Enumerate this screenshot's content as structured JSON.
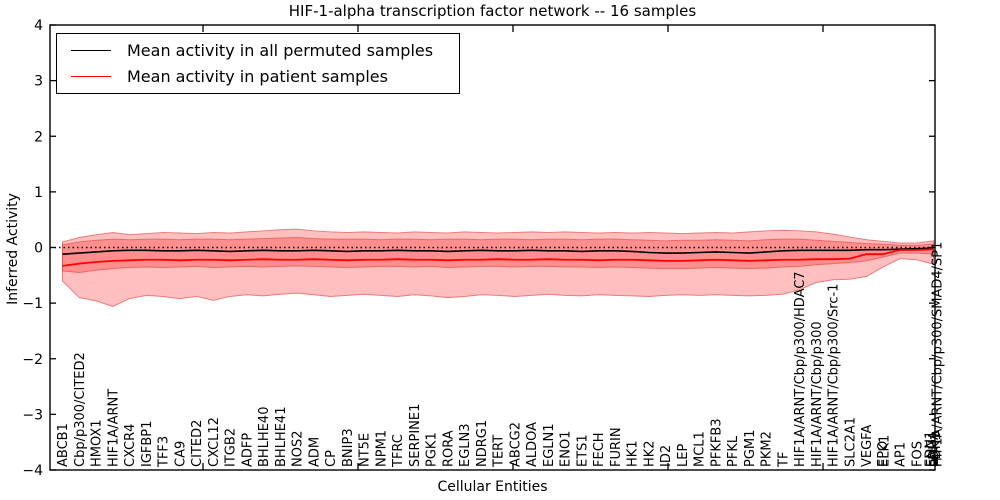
{
  "chart_data": {
    "type": "line",
    "title": "HIF-1-alpha transcription factor network -- 16 samples",
    "xlabel": "Cellular Entities",
    "ylabel": "Inferred Activity",
    "ylim": [
      -4,
      4
    ],
    "yticks": [
      -4,
      -3,
      -2,
      -1,
      0,
      1,
      2,
      3,
      4
    ],
    "grid": false,
    "zero_line_style": "dotted",
    "legend_position": "upper left",
    "x_labels": [
      [
        "ABCB1"
      ],
      [
        "Cbp/p300/CITED2"
      ],
      [
        "HMOX1"
      ],
      [
        "HIF1A/ARNT"
      ],
      [
        "CXCR4"
      ],
      [
        "IGFBP1"
      ],
      [
        "TFF3"
      ],
      [
        "CA9"
      ],
      [
        "CITED2"
      ],
      [
        "CXCL12"
      ],
      [
        "ITGB2"
      ],
      [
        "ADFP"
      ],
      [
        "BHLHE40"
      ],
      [
        "BHLHE41"
      ],
      [
        "NOS2"
      ],
      [
        "ADM"
      ],
      [
        "CP"
      ],
      [
        "BNIP3"
      ],
      [
        "NT5E"
      ],
      [
        "NPM1"
      ],
      [
        "TFRC"
      ],
      [
        "SERPINE1"
      ],
      [
        "PGK1"
      ],
      [
        "RORA"
      ],
      [
        "EGLN3"
      ],
      [
        "NDRG1"
      ],
      [
        "TERT"
      ],
      [
        "ABCG2"
      ],
      [
        "ALDOA"
      ],
      [
        "EGLN1"
      ],
      [
        "ENO1"
      ],
      [
        "ETS1"
      ],
      [
        "FECH"
      ],
      [
        "FURIN"
      ],
      [
        "HK1"
      ],
      [
        "HK2"
      ],
      [
        "ID2"
      ],
      [
        "LEP"
      ],
      [
        "MCL1"
      ],
      [
        "PFKFB3"
      ],
      [
        "PFKL"
      ],
      [
        "PGM1"
      ],
      [
        "PKM2"
      ],
      [
        "TF"
      ],
      [
        "HIF1A/ARNT/Cbp/p300/HDAC7"
      ],
      [
        "HIF1A/ARNT/Cbp/p300"
      ],
      [
        "HIF1A/ARNT/Cbp/p300/Src-1"
      ],
      [
        "SLC2A1"
      ],
      [
        "VEGFA"
      ],
      [
        "EPO",
        "ELK1"
      ],
      [
        "AP1"
      ],
      [
        "FOS"
      ],
      [
        "EDN1",
        "ENG",
        "LDHA",
        "PDK1",
        "HIF1A/ARNT/Cbp/p300/SMAD4/SP1"
      ]
    ],
    "series": [
      {
        "name": "Mean activity in all permuted samples",
        "color": "#000000",
        "values": [
          -0.12,
          -0.1,
          -0.08,
          -0.06,
          -0.05,
          -0.05,
          -0.06,
          -0.06,
          -0.05,
          -0.06,
          -0.07,
          -0.06,
          -0.05,
          -0.06,
          -0.06,
          -0.05,
          -0.06,
          -0.07,
          -0.06,
          -0.06,
          -0.05,
          -0.06,
          -0.06,
          -0.07,
          -0.06,
          -0.05,
          -0.06,
          -0.06,
          -0.05,
          -0.06,
          -0.06,
          -0.07,
          -0.06,
          -0.06,
          -0.07,
          -0.09,
          -0.1,
          -0.1,
          -0.09,
          -0.08,
          -0.09,
          -0.1,
          -0.08,
          -0.06,
          -0.05,
          -0.05,
          -0.05,
          -0.05,
          -0.04,
          -0.04,
          -0.03,
          -0.02,
          -0.01
        ]
      },
      {
        "name": "Mean activity in patient samples",
        "color": "#ff0000",
        "values": [
          -0.33,
          -0.29,
          -0.26,
          -0.24,
          -0.23,
          -0.22,
          -0.22,
          -0.23,
          -0.22,
          -0.22,
          -0.23,
          -0.22,
          -0.21,
          -0.22,
          -0.22,
          -0.21,
          -0.22,
          -0.23,
          -0.22,
          -0.22,
          -0.21,
          -0.22,
          -0.22,
          -0.23,
          -0.22,
          -0.22,
          -0.21,
          -0.22,
          -0.22,
          -0.21,
          -0.22,
          -0.22,
          -0.23,
          -0.22,
          -0.22,
          -0.23,
          -0.24,
          -0.24,
          -0.23,
          -0.22,
          -0.23,
          -0.24,
          -0.23,
          -0.22,
          -0.22,
          -0.21,
          -0.21,
          -0.2,
          -0.12,
          -0.12,
          -0.045,
          -0.045,
          -0.03
        ]
      }
    ],
    "bands": [
      {
        "name": "patient samples std band",
        "fill": "rgba(255,0,0,0.25)",
        "edge": "rgba(225,70,70,0.65)",
        "upper": [
          0.1,
          0.18,
          0.23,
          0.27,
          0.23,
          0.25,
          0.27,
          0.26,
          0.25,
          0.27,
          0.26,
          0.28,
          0.3,
          0.32,
          0.33,
          0.3,
          0.28,
          0.27,
          0.28,
          0.27,
          0.26,
          0.28,
          0.27,
          0.26,
          0.28,
          0.27,
          0.26,
          0.27,
          0.28,
          0.27,
          0.28,
          0.27,
          0.26,
          0.27,
          0.26,
          0.27,
          0.26,
          0.25,
          0.26,
          0.27,
          0.26,
          0.28,
          0.3,
          0.31,
          0.3,
          0.28,
          0.24,
          0.19,
          0.14,
          0.11,
          0.08,
          0.08,
          0.12
        ],
        "lower": [
          -0.6,
          -0.9,
          -0.96,
          -1.06,
          -0.92,
          -0.86,
          -0.88,
          -0.92,
          -0.88,
          -0.95,
          -0.88,
          -0.85,
          -0.87,
          -0.84,
          -0.82,
          -0.85,
          -0.88,
          -0.86,
          -0.84,
          -0.86,
          -0.88,
          -0.85,
          -0.87,
          -0.9,
          -0.88,
          -0.85,
          -0.86,
          -0.88,
          -0.86,
          -0.84,
          -0.86,
          -0.87,
          -0.85,
          -0.86,
          -0.87,
          -0.88,
          -0.86,
          -0.85,
          -0.86,
          -0.85,
          -0.86,
          -0.87,
          -0.86,
          -0.84,
          -0.76,
          -0.63,
          -0.58,
          -0.57,
          -0.52,
          -0.35,
          -0.2,
          -0.22,
          -0.3
        ]
      },
      {
        "name": "permuted samples std band",
        "fill": "rgba(255,0,0,0.25)",
        "edge": "rgba(225,70,70,0.65)",
        "upper": [
          0.05,
          0.1,
          0.13,
          0.15,
          0.14,
          0.15,
          0.15,
          0.14,
          0.15,
          0.15,
          0.14,
          0.15,
          0.16,
          0.17,
          0.18,
          0.16,
          0.15,
          0.15,
          0.15,
          0.14,
          0.15,
          0.15,
          0.14,
          0.15,
          0.15,
          0.14,
          0.15,
          0.15,
          0.14,
          0.15,
          0.15,
          0.14,
          0.15,
          0.15,
          0.14,
          0.13,
          0.12,
          0.13,
          0.13,
          0.14,
          0.13,
          0.12,
          0.14,
          0.15,
          0.15,
          0.13,
          0.11,
          0.09,
          0.07,
          0.06,
          0.04,
          0.04,
          0.06
        ],
        "lower": [
          -0.42,
          -0.45,
          -0.41,
          -0.38,
          -0.36,
          -0.35,
          -0.36,
          -0.35,
          -0.34,
          -0.36,
          -0.35,
          -0.34,
          -0.35,
          -0.34,
          -0.33,
          -0.34,
          -0.35,
          -0.36,
          -0.35,
          -0.34,
          -0.34,
          -0.35,
          -0.34,
          -0.36,
          -0.35,
          -0.34,
          -0.34,
          -0.35,
          -0.34,
          -0.34,
          -0.35,
          -0.35,
          -0.36,
          -0.35,
          -0.36,
          -0.37,
          -0.38,
          -0.38,
          -0.37,
          -0.36,
          -0.37,
          -0.38,
          -0.37,
          -0.35,
          -0.34,
          -0.31,
          -0.29,
          -0.27,
          -0.24,
          -0.17,
          -0.1,
          -0.1,
          -0.12
        ]
      }
    ]
  },
  "colors": {
    "axis": "#000000",
    "permuted_line": "#000000",
    "patient_line": "#ff0000",
    "band_fill_overlap": "#ef9a9a"
  }
}
